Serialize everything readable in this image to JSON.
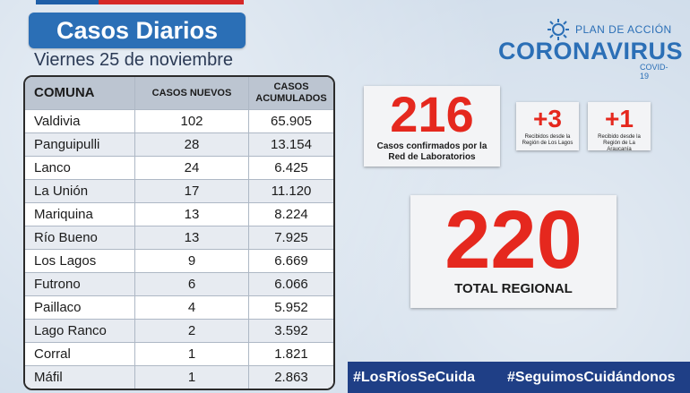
{
  "header": {
    "title": "Casos Diarios",
    "date": "Viernes 25 de noviembre"
  },
  "logo": {
    "plan": "PLAN DE ACCIÓN",
    "name": "CORONAVIRUS",
    "sub": "COVID-19"
  },
  "table": {
    "headers": {
      "comuna": "COMUNA",
      "nuevos": "CASOS NUEVOS",
      "acumulados_1": "CASOS",
      "acumulados_2": "ACUMULADOS"
    },
    "rows": [
      {
        "comuna": "Valdivia",
        "nuevos": "102",
        "acumulados": "65.905"
      },
      {
        "comuna": "Panguipulli",
        "nuevos": "28",
        "acumulados": "13.154"
      },
      {
        "comuna": "Lanco",
        "nuevos": "24",
        "acumulados": "6.425"
      },
      {
        "comuna": "La Unión",
        "nuevos": "17",
        "acumulados": "11.120"
      },
      {
        "comuna": "Mariquina",
        "nuevos": "13",
        "acumulados": "8.224"
      },
      {
        "comuna": "Río Bueno",
        "nuevos": "13",
        "acumulados": "7.925"
      },
      {
        "comuna": "Los Lagos",
        "nuevos": "9",
        "acumulados": "6.669"
      },
      {
        "comuna": "Futrono",
        "nuevos": "6",
        "acumulados": "6.066"
      },
      {
        "comuna": "Paillaco",
        "nuevos": "4",
        "acumulados": "5.952"
      },
      {
        "comuna": "Lago Ranco",
        "nuevos": "2",
        "acumulados": "3.592"
      },
      {
        "comuna": "Corral",
        "nuevos": "1",
        "acumulados": "1.821"
      },
      {
        "comuna": "Máfil",
        "nuevos": "1",
        "acumulados": "2.863"
      }
    ]
  },
  "stats": {
    "confirmed": {
      "value": "216",
      "label": "Casos confirmados por la Red de Laboratorios"
    },
    "from_los_lagos": {
      "value": "+3",
      "label": "Recibidos desde la Región de Los Lagos"
    },
    "from_araucania": {
      "value": "+1",
      "label": "Recibido desde la Región de La Araucanía"
    },
    "total": {
      "value": "220",
      "label": "TOTAL REGIONAL"
    }
  },
  "hashtags": [
    "#LosRíosSeCuida",
    "#SeguimosCuidándonos"
  ],
  "colors": {
    "accent": "#2b6fb6",
    "number": "#e5281e",
    "banner": "#1f3f86"
  }
}
